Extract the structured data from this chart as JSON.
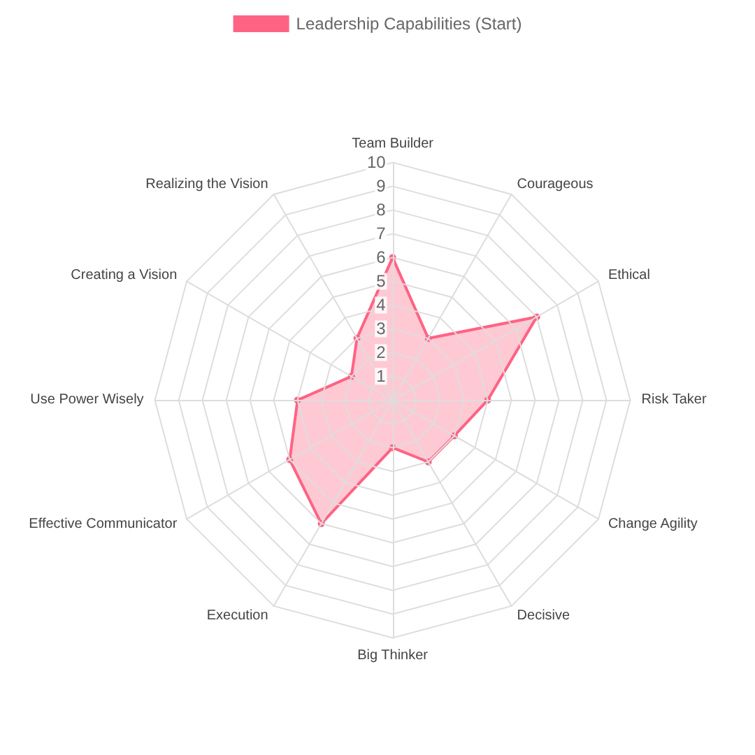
{
  "chart_data": {
    "type": "radar",
    "categories": [
      "Team Builder",
      "Courageous",
      "Ethical",
      "Risk Taker",
      "Change Agility",
      "Decisive",
      "Big Thinker",
      "Execution",
      "Effective Communicator",
      "Use Power Wisely",
      "Creating a Vision",
      "Realizing the Vision"
    ],
    "series": [
      {
        "name": "Leadership Capabilities (Start)",
        "color": "#ff6384",
        "values": [
          6,
          3,
          7,
          4,
          3,
          3,
          2,
          6,
          5,
          4,
          2,
          3
        ]
      }
    ],
    "ylim": [
      0,
      10
    ],
    "yticks": [
      1,
      2,
      3,
      4,
      5,
      6,
      7,
      8,
      9,
      10
    ],
    "grid": true,
    "legend": "top",
    "marker": "circle",
    "line_style": "solid"
  }
}
